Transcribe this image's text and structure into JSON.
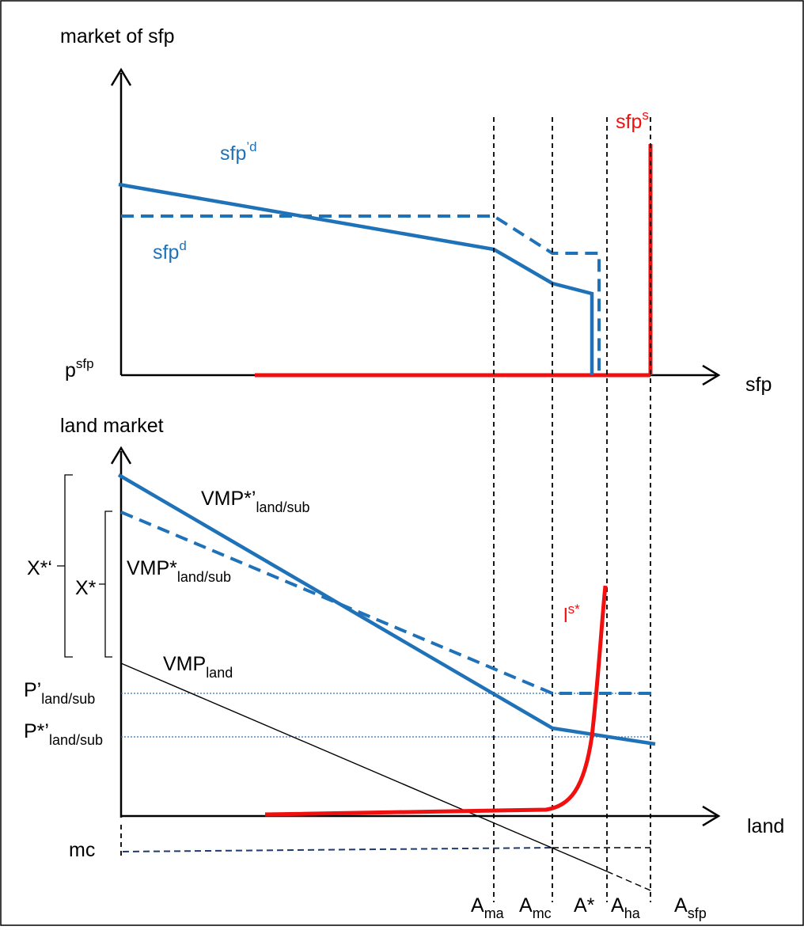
{
  "colors": {
    "demand_blue": "#1F72B8",
    "supply_red": "#F01010",
    "guide_blue": "#2F72C0",
    "mc_dash": "#1F3A6E",
    "axis": "#000000"
  },
  "top_panel": {
    "title": "market of sfp",
    "y_axis_label_base": "p",
    "y_axis_label_sup": "sfp",
    "x_axis_label": "sfp",
    "supply_label_base": "sfp",
    "supply_label_sup": "s",
    "demand_label_base": "sfp",
    "demand_label_sup": "d",
    "demand_new_label_base": "sfp",
    "demand_new_label_sup": "’d"
  },
  "bottom_panel": {
    "title": "land market",
    "x_axis_label": "land",
    "vmp_sub_new_base": "VMP*’",
    "vmp_sub_new_sub": "land/sub",
    "vmp_sub_base": "VMP*",
    "vmp_sub_sub": "land/sub",
    "vmp_land_base": "VMP",
    "vmp_land_sub": "land",
    "land_supply_base": "l",
    "land_supply_sup": "s*",
    "x_star_new": "X*‘",
    "x_star": "X*",
    "p_sub_base": "P’",
    "p_sub_sub": "land/sub",
    "p_star_base": "P*’",
    "p_star_sub": "land/sub",
    "mc_label": "mc"
  },
  "x_markers": [
    {
      "base": "A",
      "sub": "ma"
    },
    {
      "base": "A",
      "sub": "mc"
    },
    {
      "base": "A*",
      "sub": ""
    },
    {
      "base": "A",
      "sub": "ha"
    },
    {
      "base": "A",
      "sub": "sfp"
    }
  ]
}
